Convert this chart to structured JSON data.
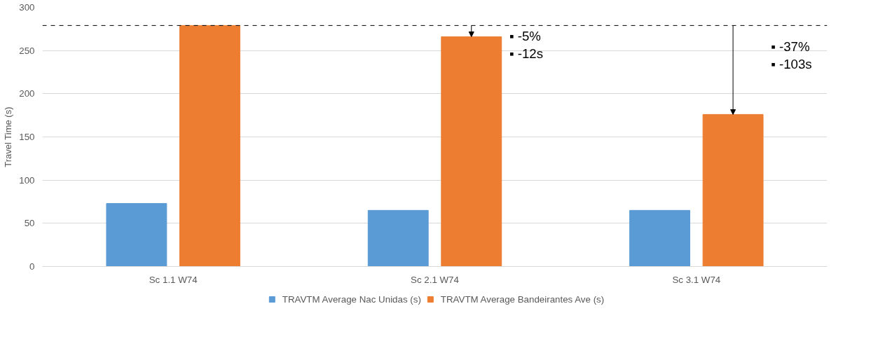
{
  "chart_data": {
    "type": "bar",
    "ylabel": "Travel Time (s)",
    "categories": [
      "Sc 1.1 W74",
      "Sc 2.1 W74",
      "Sc 3.1 W74"
    ],
    "series": [
      {
        "name": "TRAVTM Average Nac Unidas (s)",
        "color": "#5b9bd5",
        "values": [
          73,
          65,
          65
        ]
      },
      {
        "name": "TRAVTM Average Bandeirantes Ave (s)",
        "color": "#ed7d31",
        "values": [
          279,
          266,
          176
        ]
      }
    ],
    "ylim": [
      0,
      300
    ],
    "yticks": [
      0,
      50,
      100,
      150,
      200,
      250,
      300
    ],
    "grid": "y",
    "legend": "bottom",
    "ref_lines": [
      {
        "axis": "y",
        "value": 279,
        "color": "#000000",
        "line_style": "dashed"
      }
    ],
    "annotations": [
      "▪ -5%\n▪ -12s",
      "▪ -37%\n▪ -103s"
    ]
  }
}
